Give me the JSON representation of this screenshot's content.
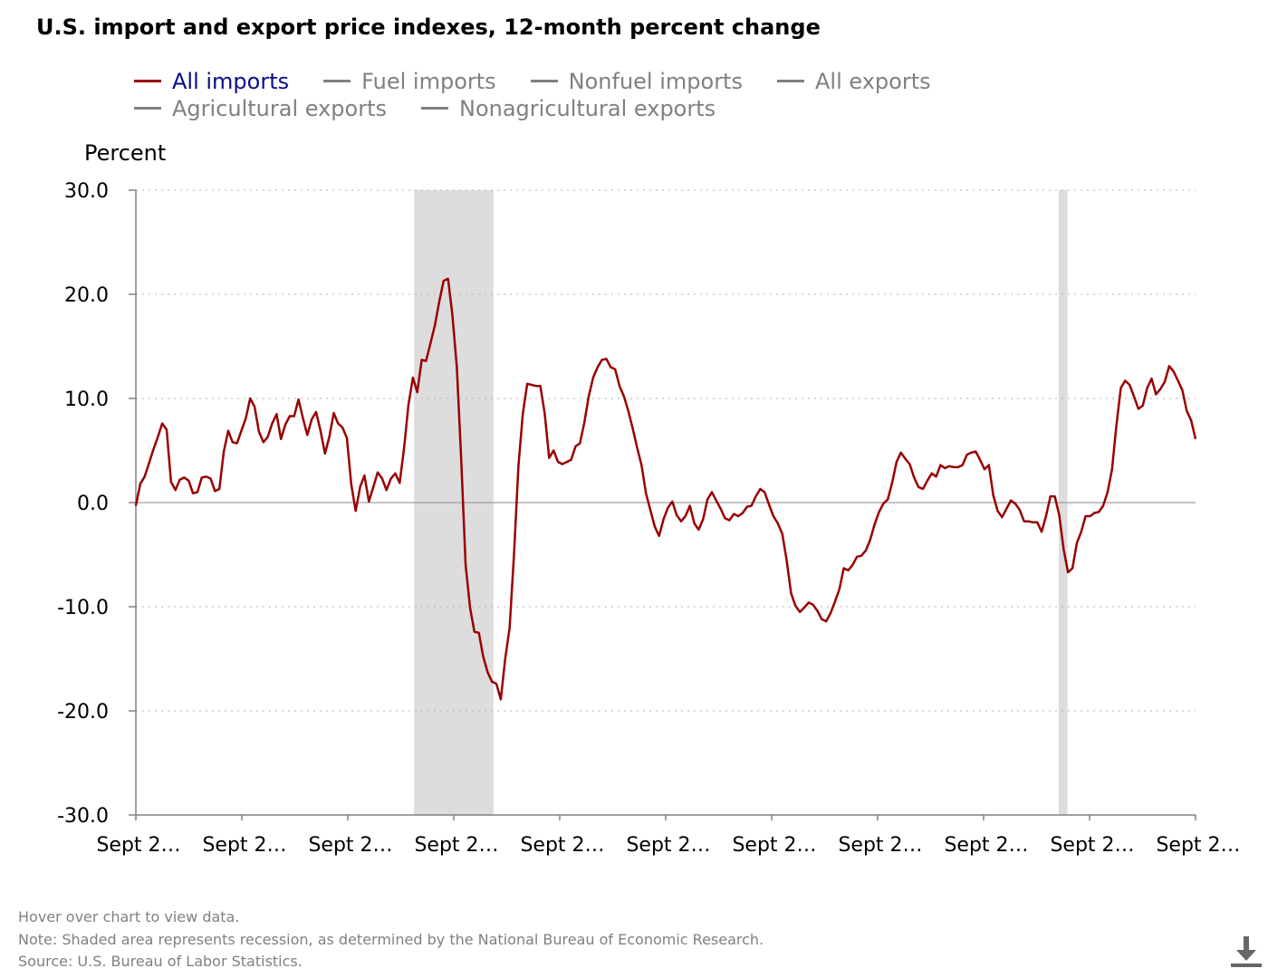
{
  "title": "U.S. import and export price indexes, 12-month percent change",
  "legend": {
    "row1": [
      {
        "name": "All imports",
        "color": "#990000",
        "active": true
      },
      {
        "name": "Fuel imports",
        "color": "#808080",
        "active": false
      },
      {
        "name": "Nonfuel imports",
        "color": "#808080",
        "active": false
      },
      {
        "name": "All exports",
        "color": "#808080",
        "active": false
      }
    ],
    "row2": [
      {
        "name": "Agricultural exports",
        "color": "#808080",
        "active": false
      },
      {
        "name": "Nonagricultural exports",
        "color": "#808080",
        "active": false
      }
    ]
  },
  "footer": {
    "hover": "Hover over chart to view data.",
    "note": "Note: Shaded area represents recession, as determined by the National Bureau of Economic Research.",
    "source": "Source: U.S. Bureau of Labor Statistics."
  },
  "colors": {
    "series": "#990000",
    "recession": "#dddddd",
    "axis": "#808080",
    "grid": "#c0c0c0"
  },
  "download_icon": "download-icon",
  "chart_data": {
    "type": "line",
    "ylabel": "Percent",
    "ylim": [
      -30,
      30
    ],
    "yticks": [
      "30.0",
      "20.0",
      "10.0",
      "0.0",
      "-10.0",
      "-20.0",
      "-30.0"
    ],
    "ytick_values": [
      30,
      20,
      10,
      0,
      -10,
      -20,
      -30
    ],
    "xticks": [
      "Sept 2…",
      "Sept 2…",
      "Sept 2…",
      "Sept 2…",
      "Sept 2…",
      "Sept 2…",
      "Sept 2…",
      "Sept 2…",
      "Sept 2…",
      "Sept 2…",
      "Sept 2…"
    ],
    "x_range_months": [
      0,
      240
    ],
    "recessions": [
      [
        63,
        81
      ],
      [
        209,
        211
      ]
    ],
    "grid": "horizontal dotted",
    "legend_position": "top",
    "series": [
      {
        "name": "All imports",
        "values": [
          -0.3,
          1.8,
          2.5,
          3.8,
          5.1,
          6.3,
          7.6,
          7.0,
          2.0,
          1.2,
          2.2,
          2.4,
          2.1,
          0.9,
          1.0,
          2.4,
          2.5,
          2.3,
          1.1,
          1.3,
          4.9,
          6.9,
          5.8,
          5.7,
          6.9,
          8.1,
          10.0,
          9.2,
          6.8,
          5.8,
          6.3,
          7.6,
          8.5,
          6.1,
          7.5,
          8.3,
          8.3,
          9.9,
          8.1,
          6.5,
          8.0,
          8.7,
          6.9,
          4.7,
          6.3,
          8.6,
          7.6,
          7.2,
          6.2,
          1.7,
          -0.8,
          1.5,
          2.6,
          0.1,
          1.5,
          2.9,
          2.3,
          1.2,
          2.3,
          2.8,
          1.9,
          5.2,
          9.4,
          12.0,
          10.6,
          13.7,
          13.6,
          15.3,
          17.0,
          19.3,
          21.3,
          21.5,
          18.0,
          13.0,
          4.0,
          -6.0,
          -10.1,
          -12.4,
          -12.5,
          -14.8,
          -16.3,
          -17.2,
          -17.4,
          -18.9,
          -15.0,
          -12.0,
          -5.0,
          3.5,
          8.5,
          11.4,
          11.3,
          11.2,
          11.2,
          8.5,
          4.3,
          5.0,
          3.9,
          3.7,
          3.9,
          4.1,
          5.4,
          5.7,
          7.7,
          10.2,
          12.0,
          13.0,
          13.7,
          13.8,
          13.0,
          12.8,
          11.2,
          10.2,
          8.8,
          7.1,
          5.3,
          3.6,
          0.9,
          -0.7,
          -2.3,
          -3.2,
          -1.6,
          -0.5,
          0.1,
          -1.2,
          -1.8,
          -1.3,
          -0.3,
          -2.0,
          -2.6,
          -1.6,
          0.3,
          1.0,
          0.2,
          -0.6,
          -1.5,
          -1.7,
          -1.1,
          -1.3,
          -1.0,
          -0.4,
          -0.3,
          0.6,
          1.3,
          1.0,
          -0.2,
          -1.3,
          -2.0,
          -3.0,
          -5.5,
          -8.7,
          -9.9,
          -10.5,
          -10.1,
          -9.6,
          -9.8,
          -10.4,
          -11.2,
          -11.4,
          -10.6,
          -9.5,
          -8.3,
          -6.3,
          -6.5,
          -6.0,
          -5.2,
          -5.1,
          -4.6,
          -3.6,
          -2.1,
          -0.9,
          -0.1,
          0.3,
          1.9,
          3.9,
          4.8,
          4.2,
          3.7,
          2.4,
          1.5,
          1.3,
          2.1,
          2.8,
          2.5,
          3.6,
          3.3,
          3.5,
          3.4,
          3.4,
          3.6,
          4.6,
          4.8,
          4.9,
          4.1,
          3.2,
          3.6,
          0.7,
          -0.8,
          -1.4,
          -0.6,
          0.2,
          -0.1,
          -0.7,
          -1.8,
          -1.8,
          -1.9,
          -1.9,
          -2.8,
          -1.3,
          0.6,
          0.6,
          -1.2,
          -4.5,
          -6.7,
          -6.3,
          -3.9,
          -2.8,
          -1.3,
          -1.3,
          -1.0,
          -0.9,
          -0.3,
          1.0,
          3.2,
          7.4,
          11.0,
          11.7,
          11.3,
          10.2,
          9.0,
          9.3,
          11.0,
          11.9,
          10.4,
          10.9,
          11.6,
          13.1,
          12.6,
          11.7,
          10.8,
          8.8,
          7.9,
          6.1
        ]
      }
    ]
  }
}
